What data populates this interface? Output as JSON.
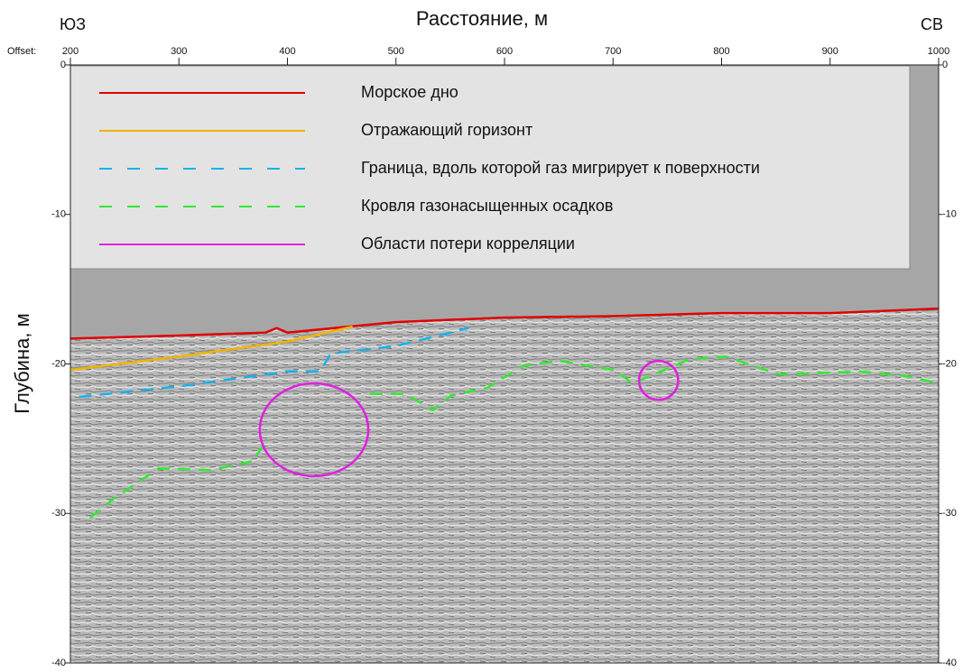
{
  "chart_data": {
    "type": "line",
    "title": "Расстояние, м",
    "y_label": "Глубина, м",
    "left_label": "ЮЗ",
    "right_label": "СВ",
    "x_axis_prefix": "Offset:",
    "xlim": [
      200,
      1000
    ],
    "ylim": [
      -40,
      0
    ],
    "xticks": [
      200,
      300,
      400,
      500,
      600,
      700,
      800,
      900,
      1000
    ],
    "yticks": [
      0,
      -10,
      -20,
      -30,
      -40
    ],
    "series": [
      {
        "name": "Морское дно",
        "color": "#e00000",
        "dashed": false,
        "x": [
          200,
          300,
          380,
          390,
          400,
          500,
          600,
          700,
          800,
          900,
          1000
        ],
        "values": [
          -18.3,
          -18.1,
          -17.9,
          -17.6,
          -17.9,
          -17.2,
          -16.9,
          -16.8,
          -16.6,
          -16.6,
          -16.3
        ]
      },
      {
        "name": "Отражающий горизонт",
        "color": "#f0b400",
        "dashed": false,
        "x": [
          200,
          300,
          400,
          460
        ],
        "values": [
          -20.4,
          -19.5,
          -18.5,
          -17.5
        ]
      },
      {
        "name": "Граница, вдоль которой газ мигрирует к поверхности",
        "color": "#1ab0e8",
        "dashed": true,
        "x": [
          208,
          300,
          400,
          430,
          440,
          500,
          567
        ],
        "values": [
          -22.2,
          -21.5,
          -20.5,
          -20.5,
          -19.3,
          -18.8,
          -17.6
        ]
      },
      {
        "name": "Кровля газонасыщенных осадков",
        "color": "#33e833",
        "dashed": true,
        "x": [
          218,
          240,
          281,
          330,
          368,
          380,
          null,
          476,
          509,
          534,
          551,
          584,
          618,
          651,
          701,
          718,
          770,
          803,
          853,
          928,
          970,
          1000
        ],
        "values": [
          -30.3,
          -29,
          -27,
          -27.1,
          -26.5,
          -25.2,
          null,
          -22,
          -22,
          -23.1,
          -22.1,
          -21.6,
          -20.1,
          -19.8,
          -20.4,
          -21.3,
          -19.7,
          -19.5,
          -20.7,
          -20.5,
          -20.8,
          -21.3
        ]
      },
      {
        "name": "Области потери корреляции",
        "color": "#e020e0",
        "dashed": false,
        "ellipses": [
          {
            "x": 424.5,
            "y": -24.4,
            "rx": 50,
            "ry": 3.1
          },
          {
            "x": 742,
            "y": -21.1,
            "rx": 18,
            "ry": 1.3
          }
        ]
      }
    ]
  }
}
